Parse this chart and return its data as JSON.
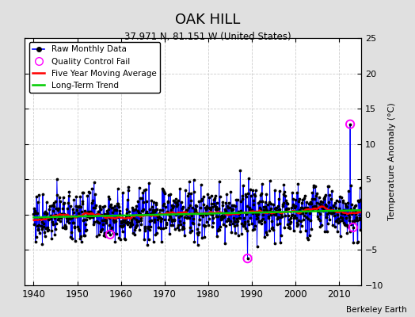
{
  "title": "OAK HILL",
  "subtitle": "37.971 N, 81.151 W (United States)",
  "ylabel": "Temperature Anomaly (°C)",
  "xlim": [
    1938,
    2015
  ],
  "ylim": [
    -10,
    25
  ],
  "yticks": [
    -10,
    -5,
    0,
    5,
    10,
    15,
    20,
    25
  ],
  "xticks": [
    1940,
    1950,
    1960,
    1970,
    1980,
    1990,
    2000,
    2010
  ],
  "bg_color": "#e0e0e0",
  "plot_bg_color": "#ffffff",
  "grid_color": "#cccccc",
  "line_color": "#0000ff",
  "ma_color": "#ff0000",
  "trend_color": "#00cc00",
  "qc_color": "#ff00ff",
  "seed": 77,
  "start_year": 1940,
  "end_year": 2014,
  "noise_std": 1.8,
  "trend_slope": 0.012,
  "ma_window": 60,
  "watermark": "Berkeley Earth",
  "qc_points": [
    [
      1957.5,
      -2.8
    ],
    [
      1989.0,
      -6.2
    ],
    [
      2012.5,
      12.8
    ],
    [
      2013.2,
      -1.8
    ]
  ]
}
